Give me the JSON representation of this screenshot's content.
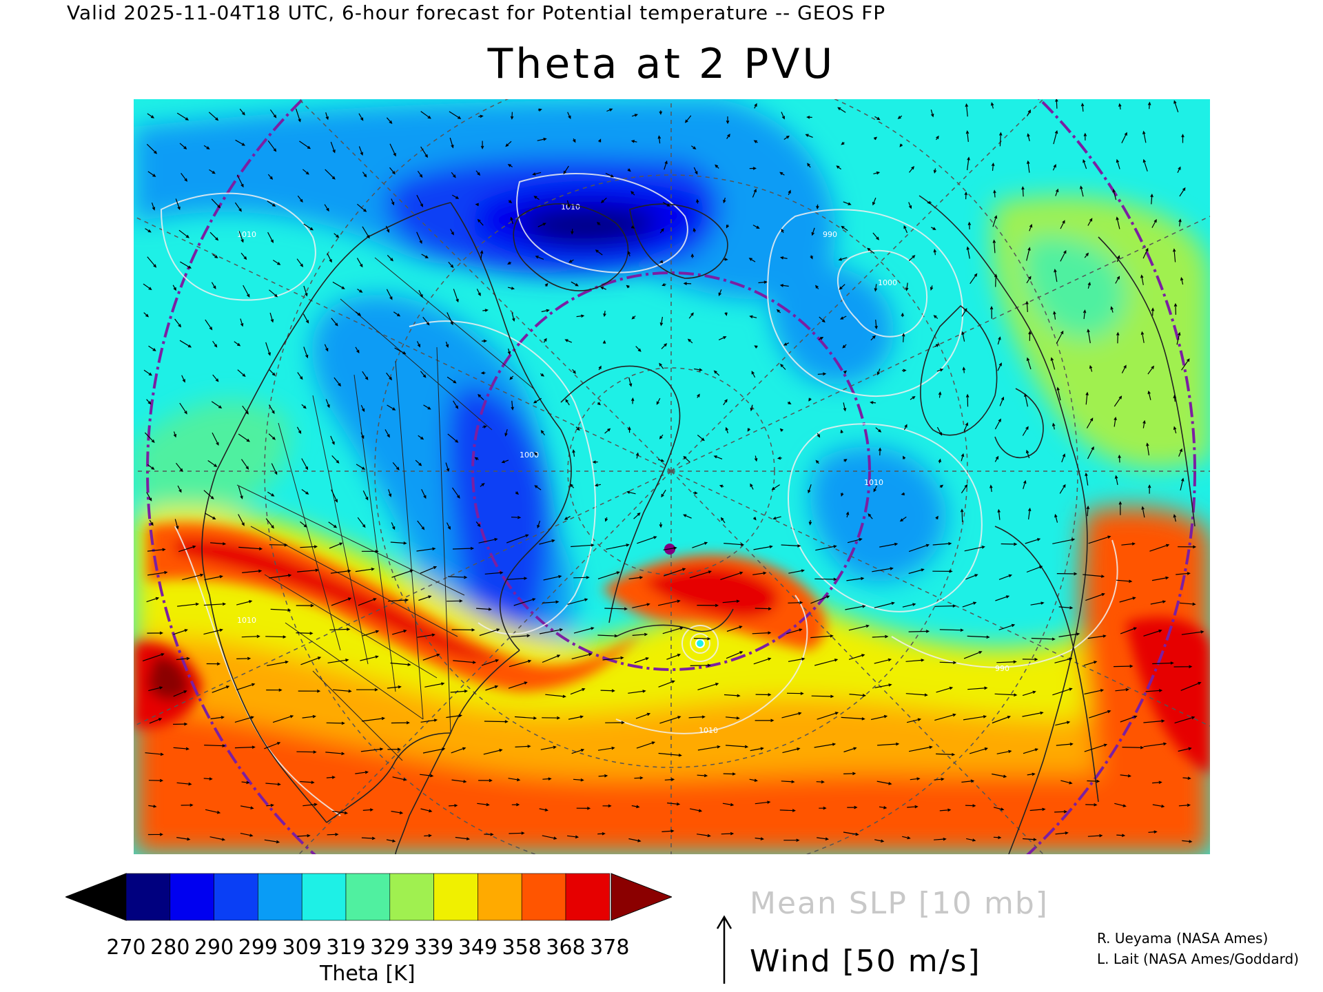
{
  "header": {
    "valid_line": "Valid 2025-11-04T18 UTC, 6-hour forecast for Potential temperature -- GEOS FP"
  },
  "map": {
    "title": "Theta at 2 PVU",
    "contour_labels": [
      "1010",
      "1010",
      "1000",
      "990",
      "1010",
      "1000",
      "1010",
      "1010",
      "990"
    ]
  },
  "colorbar": {
    "under_color": "#000000",
    "over_color": "#8b0000",
    "colors": [
      "#00007f",
      "#0000f0",
      "#0a3ff5",
      "#0a9cf5",
      "#1ef0e6",
      "#50f0a0",
      "#a0f050",
      "#f0f000",
      "#ffaa00",
      "#ff5500",
      "#e60000"
    ],
    "ticks": [
      "270",
      "280",
      "290",
      "299",
      "309",
      "319",
      "329",
      "339",
      "349",
      "358",
      "368",
      "378"
    ],
    "title": "Theta [K]"
  },
  "legend": {
    "slp_label": "Mean SLP [10 mb]",
    "wind_label": "Wind [50 m/s]",
    "wind_icon": "up-arrow-icon"
  },
  "credits": {
    "line1": "R. Ueyama (NASA Ames)",
    "line2": "L. Lait (NASA Ames/Goddard)"
  }
}
